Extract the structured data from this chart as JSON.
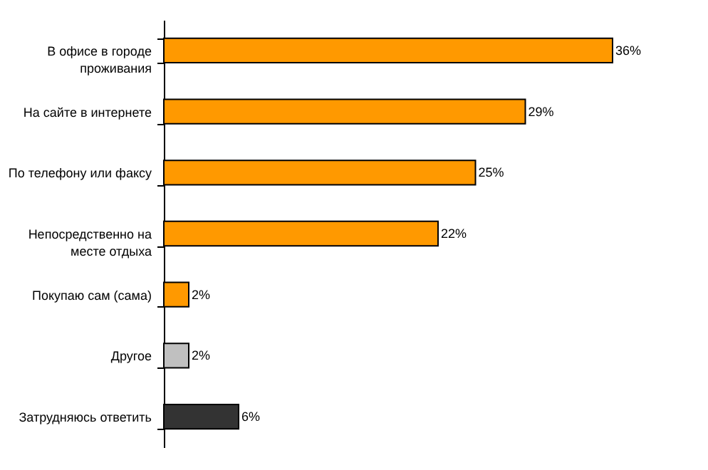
{
  "chart_data": {
    "type": "bar",
    "orientation": "horizontal",
    "categories": [
      "В офисе в городе проживания",
      "На сайте в интернете",
      "По телефону или факсу",
      "Непосредственно на месте отдыха",
      "Покупаю сам (сама)",
      "Другое",
      "Затрудняюсь ответить"
    ],
    "values": [
      36,
      29,
      25,
      22,
      2,
      2,
      6
    ],
    "colors": [
      "#ff9900",
      "#ff9900",
      "#ff9900",
      "#ff9900",
      "#ff9900",
      "#c0c0c0",
      "#333333"
    ],
    "value_labels": [
      "36%",
      "29%",
      "25%",
      "22%",
      "2%",
      "2%",
      "6%"
    ],
    "tick_labels": "y"
  }
}
